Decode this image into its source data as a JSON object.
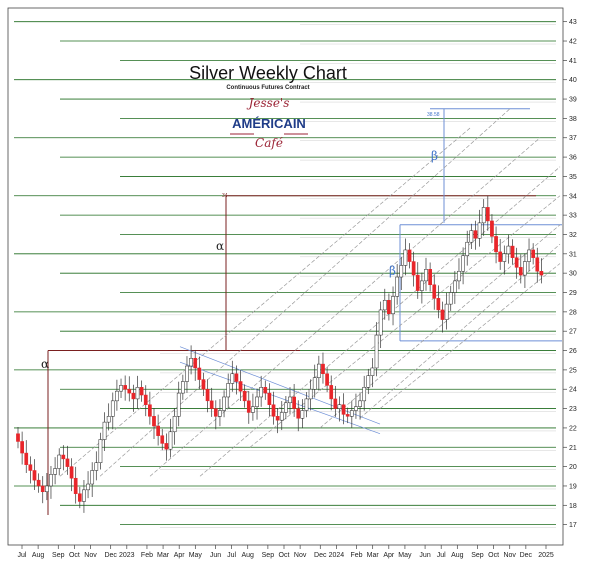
{
  "title": "Silver Weekly Chart",
  "subtitle": "Continuous Futures Contract",
  "logo": {
    "line1": "Jesse's",
    "line2": "AMÉRICAIN",
    "line3": "Café"
  },
  "annotations": {
    "alpha_left": "α",
    "alpha_mid": "α",
    "beta_upper": "β",
    "beta_lower": "β",
    "marker_34": "34",
    "marker_3858": "38.58"
  },
  "colors": {
    "up_candle": "#ffffff",
    "down_candle": "#e8252a",
    "wick": "#333333",
    "green_line": "#1e6b1e",
    "red_line": "#7a1f1f",
    "blue_line": "#6e8fd6",
    "channel_line": "#9a9a9a",
    "frame": "#444444"
  },
  "chart_data": {
    "type": "candlestick",
    "title": "Silver Weekly Chart",
    "subtitle": "Continuous Futures Contract",
    "y_axis": {
      "position": "right",
      "ylim": [
        16,
        43.5
      ],
      "ticks": [
        17,
        18,
        19,
        20,
        21,
        22,
        23,
        24,
        25,
        26,
        27,
        28,
        29,
        30,
        31,
        32,
        33,
        34,
        35,
        36,
        37,
        38,
        39,
        40,
        41,
        42,
        43
      ]
    },
    "x_axis": {
      "labels": [
        "Jul",
        "Aug",
        "Sep",
        "Oct",
        "Nov",
        "Dec",
        "2023",
        "Feb",
        "Mar",
        "Apr",
        "May",
        "Jun",
        "Jul",
        "Aug",
        "Sep",
        "Oct",
        "Nov",
        "Dec",
        "2024",
        "Feb",
        "Mar",
        "Apr",
        "May",
        "Jun",
        "Jul",
        "Aug",
        "Sep",
        "Oct",
        "Nov",
        "Dec",
        "2025"
      ],
      "label_weeks": [
        0,
        4,
        9,
        13,
        17,
        22,
        26,
        31,
        35,
        39,
        43,
        48,
        52,
        56,
        61,
        65,
        69,
        74,
        78,
        83,
        87,
        91,
        95,
        100,
        104,
        108,
        113,
        117,
        121,
        125,
        130
      ]
    },
    "weeks": 128,
    "closes": [
      21.3,
      20.7,
      20.1,
      19.8,
      19.3,
      19.0,
      18.7,
      19.0,
      19.6,
      19.9,
      20.6,
      20.4,
      20.0,
      19.4,
      18.6,
      18.2,
      18.8,
      19.1,
      19.8,
      20.2,
      21.4,
      22.3,
      22.6,
      23.4,
      23.9,
      24.2,
      24.0,
      23.8,
      23.5,
      24.1,
      23.7,
      23.2,
      22.6,
      22.1,
      21.6,
      21.2,
      20.9,
      21.8,
      22.6,
      23.8,
      24.4,
      25.2,
      25.6,
      25.1,
      24.5,
      24.0,
      23.4,
      23.0,
      22.6,
      22.9,
      23.6,
      24.3,
      24.8,
      24.4,
      23.9,
      23.4,
      22.8,
      23.1,
      23.6,
      24.1,
      23.8,
      23.2,
      22.6,
      22.4,
      22.8,
      23.3,
      23.6,
      23.0,
      22.5,
      22.9,
      23.5,
      24.0,
      24.6,
      25.3,
      24.8,
      24.2,
      23.5,
      23.0,
      23.2,
      22.7,
      22.6,
      22.9,
      23.1,
      23.4,
      24.1,
      24.7,
      25.1,
      26.8,
      28.1,
      28.6,
      27.9,
      28.8,
      29.8,
      30.4,
      31.2,
      30.6,
      29.9,
      29.1,
      29.6,
      30.2,
      29.4,
      28.7,
      28.1,
      27.6,
      28.4,
      29.0,
      29.6,
      30.1,
      30.9,
      31.6,
      32.2,
      31.8,
      32.6,
      33.4,
      32.7,
      31.9,
      31.1,
      30.6,
      31.0,
      31.4,
      30.8,
      30.3,
      29.9,
      30.6,
      31.2,
      30.8,
      30.1,
      29.9
    ],
    "horizontal_levels": {
      "green": [
        43,
        42,
        41,
        40,
        39,
        38,
        37,
        36,
        35,
        34,
        33,
        32,
        31,
        30,
        29,
        28,
        27,
        26,
        25,
        24,
        23,
        22,
        21,
        20,
        19,
        18,
        17
      ],
      "red": [
        34,
        26
      ]
    },
    "grid": false,
    "legend": "none"
  }
}
